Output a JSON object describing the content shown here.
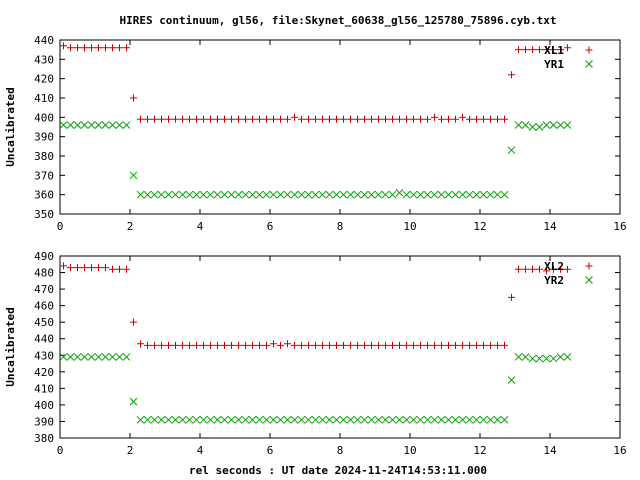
{
  "title": "HIRES continuum, gl56, file:Skynet_60638_gl56_125780_75896.cyb.txt",
  "xlabel": "rel seconds : UT date 2024-11-24T14:53:11.000",
  "colors": {
    "plus": "#cc0000",
    "cross": "#00a000",
    "axis": "#000000"
  },
  "chart_data": [
    {
      "type": "scatter",
      "ylabel": "Uncalibrated",
      "xlim": [
        0,
        16
      ],
      "ylim": [
        350,
        440
      ],
      "xticks": [
        0,
        2,
        4,
        6,
        8,
        10,
        12,
        14,
        16
      ],
      "yticks": [
        350,
        360,
        370,
        380,
        390,
        400,
        410,
        420,
        430,
        440
      ],
      "legend_position": "top-right",
      "series": [
        {
          "name": "XL1",
          "marker": "plus",
          "x": [
            0.1,
            0.3,
            0.5,
            0.7,
            0.9,
            1.1,
            1.3,
            1.5,
            1.7,
            1.9,
            2.1,
            2.3,
            2.5,
            2.7,
            2.9,
            3.1,
            3.3,
            3.5,
            3.7,
            3.9,
            4.1,
            4.3,
            4.5,
            4.7,
            4.9,
            5.1,
            5.3,
            5.5,
            5.7,
            5.9,
            6.1,
            6.3,
            6.5,
            6.7,
            6.9,
            7.1,
            7.3,
            7.5,
            7.7,
            7.9,
            8.1,
            8.3,
            8.5,
            8.7,
            8.9,
            9.1,
            9.3,
            9.5,
            9.7,
            9.9,
            10.1,
            10.3,
            10.5,
            10.7,
            10.9,
            11.1,
            11.3,
            11.5,
            11.7,
            11.9,
            12.1,
            12.3,
            12.5,
            12.7,
            12.9,
            13.1,
            13.3,
            13.5,
            13.7,
            13.9,
            14.1,
            14.3,
            14.5
          ],
          "y": [
            437,
            436,
            436,
            436,
            436,
            436,
            436,
            436,
            436,
            436,
            410,
            399,
            399,
            399,
            399,
            399,
            399,
            399,
            399,
            399,
            399,
            399,
            399,
            399,
            399,
            399,
            399,
            399,
            399,
            399,
            399,
            399,
            399,
            400,
            399,
            399,
            399,
            399,
            399,
            399,
            399,
            399,
            399,
            399,
            399,
            399,
            399,
            399,
            399,
            399,
            399,
            399,
            399,
            400,
            399,
            399,
            399,
            400,
            399,
            399,
            399,
            399,
            399,
            399,
            422,
            435,
            435,
            435,
            435,
            435,
            435,
            435,
            436
          ]
        },
        {
          "name": "YR1",
          "marker": "cross",
          "x": [
            0.1,
            0.3,
            0.5,
            0.7,
            0.9,
            1.1,
            1.3,
            1.5,
            1.7,
            1.9,
            2.1,
            2.3,
            2.5,
            2.7,
            2.9,
            3.1,
            3.3,
            3.5,
            3.7,
            3.9,
            4.1,
            4.3,
            4.5,
            4.7,
            4.9,
            5.1,
            5.3,
            5.5,
            5.7,
            5.9,
            6.1,
            6.3,
            6.5,
            6.7,
            6.9,
            7.1,
            7.3,
            7.5,
            7.7,
            7.9,
            8.1,
            8.3,
            8.5,
            8.7,
            8.9,
            9.1,
            9.3,
            9.5,
            9.7,
            9.9,
            10.1,
            10.3,
            10.5,
            10.7,
            10.9,
            11.1,
            11.3,
            11.5,
            11.7,
            11.9,
            12.1,
            12.3,
            12.5,
            12.7,
            12.9,
            13.1,
            13.3,
            13.5,
            13.7,
            13.9,
            14.1,
            14.3,
            14.5
          ],
          "y": [
            396,
            396,
            396,
            396,
            396,
            396,
            396,
            396,
            396,
            396,
            370,
            360,
            360,
            360,
            360,
            360,
            360,
            360,
            360,
            360,
            360,
            360,
            360,
            360,
            360,
            360,
            360,
            360,
            360,
            360,
            360,
            360,
            360,
            360,
            360,
            360,
            360,
            360,
            360,
            360,
            360,
            360,
            360,
            360,
            360,
            360,
            360,
            360,
            361,
            360,
            360,
            360,
            360,
            360,
            360,
            360,
            360,
            360,
            360,
            360,
            360,
            360,
            360,
            360,
            383,
            396,
            396,
            395,
            395,
            396,
            396,
            396,
            396
          ]
        }
      ]
    },
    {
      "type": "scatter",
      "ylabel": "Uncalibrated",
      "xlim": [
        0,
        16
      ],
      "ylim": [
        380,
        490
      ],
      "xticks": [
        0,
        2,
        4,
        6,
        8,
        10,
        12,
        14,
        16
      ],
      "yticks": [
        380,
        390,
        400,
        410,
        420,
        430,
        440,
        450,
        460,
        470,
        480,
        490
      ],
      "legend_position": "top-right",
      "series": [
        {
          "name": "XL2",
          "marker": "plus",
          "x": [
            0.1,
            0.3,
            0.5,
            0.7,
            0.9,
            1.1,
            1.3,
            1.5,
            1.7,
            1.9,
            2.1,
            2.3,
            2.5,
            2.7,
            2.9,
            3.1,
            3.3,
            3.5,
            3.7,
            3.9,
            4.1,
            4.3,
            4.5,
            4.7,
            4.9,
            5.1,
            5.3,
            5.5,
            5.7,
            5.9,
            6.1,
            6.3,
            6.5,
            6.7,
            6.9,
            7.1,
            7.3,
            7.5,
            7.7,
            7.9,
            8.1,
            8.3,
            8.5,
            8.7,
            8.9,
            9.1,
            9.3,
            9.5,
            9.7,
            9.9,
            10.1,
            10.3,
            10.5,
            10.7,
            10.9,
            11.1,
            11.3,
            11.5,
            11.7,
            11.9,
            12.1,
            12.3,
            12.5,
            12.7,
            12.9,
            13.1,
            13.3,
            13.5,
            13.7,
            13.9,
            14.1,
            14.3,
            14.5
          ],
          "y": [
            484,
            483,
            483,
            483,
            483,
            483,
            483,
            482,
            482,
            482,
            450,
            437,
            436,
            436,
            436,
            436,
            436,
            436,
            436,
            436,
            436,
            436,
            436,
            436,
            436,
            436,
            436,
            436,
            436,
            436,
            437,
            436,
            437,
            436,
            436,
            436,
            436,
            436,
            436,
            436,
            436,
            436,
            436,
            436,
            436,
            436,
            436,
            436,
            436,
            436,
            436,
            436,
            436,
            436,
            436,
            436,
            436,
            436,
            436,
            436,
            436,
            436,
            436,
            436,
            465,
            482,
            482,
            482,
            482,
            481,
            482,
            482,
            482
          ]
        },
        {
          "name": "YR2",
          "marker": "cross",
          "x": [
            0.1,
            0.3,
            0.5,
            0.7,
            0.9,
            1.1,
            1.3,
            1.5,
            1.7,
            1.9,
            2.1,
            2.3,
            2.5,
            2.7,
            2.9,
            3.1,
            3.3,
            3.5,
            3.7,
            3.9,
            4.1,
            4.3,
            4.5,
            4.7,
            4.9,
            5.1,
            5.3,
            5.5,
            5.7,
            5.9,
            6.1,
            6.3,
            6.5,
            6.7,
            6.9,
            7.1,
            7.3,
            7.5,
            7.7,
            7.9,
            8.1,
            8.3,
            8.5,
            8.7,
            8.9,
            9.1,
            9.3,
            9.5,
            9.7,
            9.9,
            10.1,
            10.3,
            10.5,
            10.7,
            10.9,
            11.1,
            11.3,
            11.5,
            11.7,
            11.9,
            12.1,
            12.3,
            12.5,
            12.7,
            12.9,
            13.1,
            13.3,
            13.5,
            13.7,
            13.9,
            14.1,
            14.3,
            14.5
          ],
          "y": [
            429,
            429,
            429,
            429,
            429,
            429,
            429,
            429,
            429,
            429,
            402,
            391,
            391,
            391,
            391,
            391,
            391,
            391,
            391,
            391,
            391,
            391,
            391,
            391,
            391,
            391,
            391,
            391,
            391,
            391,
            391,
            391,
            391,
            391,
            391,
            391,
            391,
            391,
            391,
            391,
            391,
            391,
            391,
            391,
            391,
            391,
            391,
            391,
            391,
            391,
            391,
            391,
            391,
            391,
            391,
            391,
            391,
            391,
            391,
            391,
            391,
            391,
            391,
            391,
            415,
            429,
            429,
            428,
            428,
            428,
            428,
            429,
            429
          ]
        }
      ]
    }
  ]
}
